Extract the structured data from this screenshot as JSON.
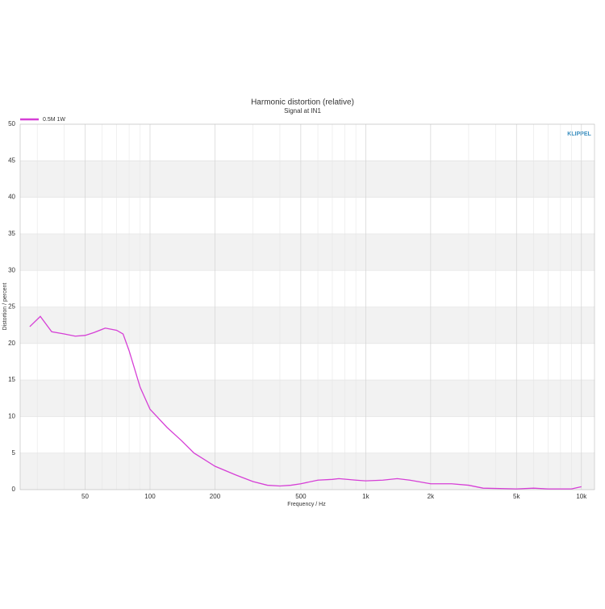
{
  "chart_data": {
    "type": "line",
    "title": "Harmonic distortion (relative)",
    "subtitle": "Signal at IN1",
    "xlabel": "Frequency / Hz",
    "ylabel": "Distortion / percent",
    "logo": "KLIPPEL",
    "xscale": "log",
    "xlim": [
      25,
      11500
    ],
    "ylim": [
      0,
      50
    ],
    "xticks": [
      50,
      100,
      200,
      500,
      {
        "value": 1000,
        "label": "1k"
      },
      {
        "value": 2000,
        "label": "2k"
      },
      {
        "value": 5000,
        "label": "5k"
      },
      {
        "value": 10000,
        "label": "10k"
      }
    ],
    "xminorticks": [
      30,
      40,
      60,
      70,
      80,
      90,
      300,
      400,
      600,
      700,
      800,
      900,
      3000,
      4000,
      6000,
      7000,
      8000,
      9000
    ],
    "yticks": [
      0,
      5,
      10,
      15,
      20,
      25,
      30,
      35,
      40,
      45,
      50
    ],
    "grid": true,
    "legend": "top-left",
    "x": [
      27.7,
      31,
      35,
      40,
      45,
      50,
      55,
      62,
      70,
      75,
      80,
      90,
      100,
      120,
      140,
      160,
      200,
      250,
      300,
      350,
      400,
      450,
      500,
      600,
      700,
      750,
      900,
      1000,
      1200,
      1400,
      1600,
      2000,
      2500,
      3000,
      3500,
      5000,
      6000,
      7000,
      9000,
      10000
    ],
    "series": [
      {
        "name": "0.5M 1W",
        "color": "#d63fd6",
        "values": [
          22.3,
          23.7,
          21.6,
          21.3,
          21.0,
          21.1,
          21.5,
          22.1,
          21.8,
          21.3,
          19,
          14,
          11,
          8.5,
          6.7,
          5,
          3.2,
          2,
          1.1,
          0.6,
          0.5,
          0.6,
          0.8,
          1.3,
          1.4,
          1.5,
          1.3,
          1.2,
          1.3,
          1.5,
          1.3,
          0.8,
          0.8,
          0.6,
          0.2,
          0.1,
          0.2,
          0.1,
          0.1,
          0.4
        ]
      }
    ]
  }
}
